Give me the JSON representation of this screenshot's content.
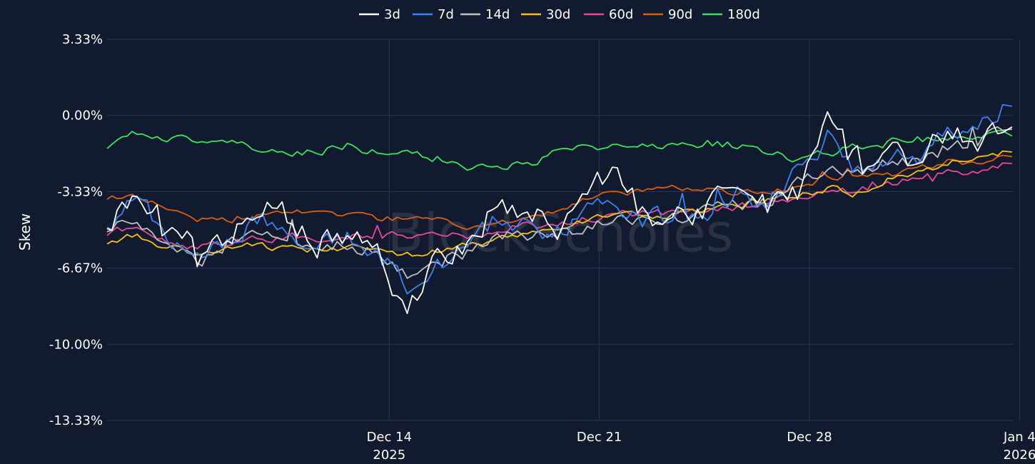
{
  "chart_data": {
    "type": "line",
    "title": "",
    "xlabel": "",
    "ylabel": "Skew",
    "watermark": "BlockScholes",
    "ylim": [
      -13.33,
      3.33
    ],
    "y_ticks": [
      {
        "value": 3.33,
        "label": "3.33%"
      },
      {
        "value": 0,
        "label": "0.00%"
      },
      {
        "value": -3.33,
        "label": "-3.33%"
      },
      {
        "value": -6.67,
        "label": "-6.67%"
      },
      {
        "value": -10.0,
        "label": "-10.00%"
      },
      {
        "value": -13.33,
        "label": "-13.33%"
      }
    ],
    "x_range_days": [
      0,
      30.2
    ],
    "x_ticks": [
      {
        "day": 9.4,
        "label": "Dec 14",
        "sublabel": "2025"
      },
      {
        "day": 16.4,
        "label": "Dec 21",
        "sublabel": ""
      },
      {
        "day": 23.4,
        "label": "Dec 28",
        "sublabel": ""
      },
      {
        "day": 30.4,
        "label": "Jan 4",
        "sublabel": "2026"
      }
    ],
    "grid": true,
    "legend_position": "top-center",
    "x_days": [
      0,
      1,
      2,
      3,
      4,
      5,
      6,
      7,
      8,
      9,
      10,
      11,
      12,
      13,
      14,
      15,
      16,
      17,
      18,
      19,
      20,
      21,
      22,
      23,
      24,
      25,
      26,
      27,
      28,
      29,
      30
    ],
    "series": [
      {
        "name": "3d",
        "color": "#ffffff",
        "values": [
          -5.2,
          -3.0,
          -5.0,
          -6.0,
          -5.5,
          -3.8,
          -4.5,
          -5.8,
          -5.0,
          -6.2,
          -8.4,
          -6.5,
          -5.5,
          -4.0,
          -4.5,
          -4.8,
          -3.5,
          -2.5,
          -4.5,
          -4.2,
          -4.0,
          -2.8,
          -4.0,
          -3.6,
          0.6,
          -2.0,
          -1.3,
          -1.8,
          -0.7,
          -1.4,
          -0.5
        ]
      },
      {
        "name": "7d",
        "color": "#3b82f6",
        "values": [
          -5.0,
          -3.5,
          -5.2,
          -6.2,
          -5.6,
          -4.5,
          -4.8,
          -5.8,
          -5.3,
          -6.0,
          -7.5,
          -6.5,
          -5.8,
          -4.5,
          -5.0,
          -5.1,
          -4.2,
          -3.8,
          -4.6,
          -4.4,
          -4.1,
          -3.4,
          -3.8,
          -2.5,
          -1.0,
          -2.5,
          -1.7,
          -1.8,
          -0.8,
          -0.8,
          0.4
        ]
      },
      {
        "name": "14d",
        "color": "#bfbfbf",
        "values": [
          -5.1,
          -4.6,
          -5.5,
          -6.5,
          -5.6,
          -5.2,
          -5.3,
          -5.9,
          -5.6,
          -6.1,
          -6.9,
          -6.3,
          -6.0,
          -5.2,
          -5.2,
          -5.1,
          -4.8,
          -4.4,
          -4.5,
          -4.5,
          -4.2,
          -3.9,
          -3.8,
          -2.8,
          -2.4,
          -2.5,
          -2.0,
          -2.0,
          -1.4,
          -1.2,
          -0.6
        ]
      },
      {
        "name": "30d",
        "color": "#f5c211",
        "values": [
          -5.6,
          -5.2,
          -5.8,
          -6.1,
          -5.9,
          -5.7,
          -5.8,
          -5.9,
          -5.7,
          -5.8,
          -6.1,
          -5.9,
          -5.7,
          -5.3,
          -5.1,
          -4.9,
          -4.6,
          -4.4,
          -4.4,
          -4.3,
          -4.2,
          -3.9,
          -3.7,
          -3.5,
          -3.2,
          -3.4,
          -2.8,
          -2.5,
          -2.0,
          -1.7,
          -1.6
        ]
      },
      {
        "name": "60d",
        "color": "#ec4899",
        "values": [
          -5.2,
          -4.8,
          -5.5,
          -5.8,
          -5.6,
          -5.4,
          -5.3,
          -5.4,
          -5.3,
          -5.2,
          -5.3,
          -5.2,
          -5.3,
          -5.0,
          -4.8,
          -4.8,
          -4.5,
          -4.3,
          -4.3,
          -4.3,
          -4.2,
          -4.0,
          -3.9,
          -3.6,
          -3.4,
          -3.3,
          -3.0,
          -2.8,
          -2.5,
          -2.4,
          -2.1
        ]
      },
      {
        "name": "90d",
        "color": "#d95f0e",
        "values": [
          -3.6,
          -3.6,
          -4.1,
          -4.5,
          -4.6,
          -4.4,
          -4.2,
          -4.3,
          -4.3,
          -4.5,
          -4.5,
          -4.6,
          -4.9,
          -4.7,
          -4.5,
          -4.1,
          -3.6,
          -3.4,
          -3.3,
          -3.2,
          -3.2,
          -3.4,
          -3.3,
          -3.2,
          -2.7,
          -2.7,
          -2.5,
          -2.3,
          -2.0,
          -2.1,
          -1.8
        ]
      },
      {
        "name": "180d",
        "color": "#39e55a",
        "values": [
          -1.2,
          -0.8,
          -1.0,
          -1.2,
          -1.1,
          -1.4,
          -1.7,
          -1.6,
          -1.3,
          -1.6,
          -1.6,
          -1.9,
          -2.2,
          -2.2,
          -2.2,
          -1.6,
          -1.4,
          -1.3,
          -1.2,
          -1.4,
          -1.2,
          -1.3,
          -1.5,
          -1.9,
          -1.6,
          -1.4,
          -1.2,
          -1.0,
          -1.1,
          -0.9,
          -0.9
        ]
      }
    ]
  }
}
